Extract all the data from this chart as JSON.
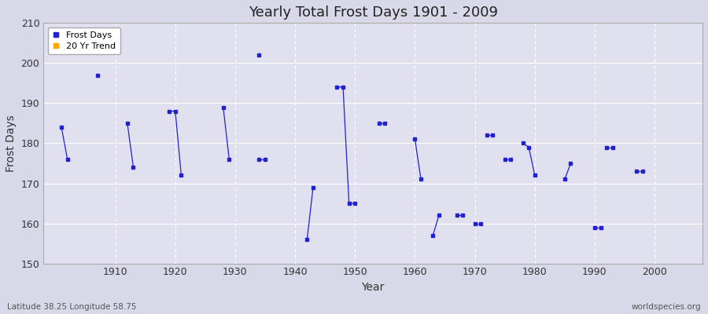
{
  "title": "Yearly Total Frost Days 1901 - 2009",
  "xlabel": "Year",
  "ylabel": "Frost Days",
  "xlim": [
    1898,
    2008
  ],
  "ylim": [
    150,
    210
  ],
  "yticks": [
    150,
    160,
    170,
    180,
    190,
    200,
    210
  ],
  "xticks": [
    1910,
    1920,
    1930,
    1940,
    1950,
    1960,
    1970,
    1980,
    1990,
    2000
  ],
  "bg_color": "#d8d8e8",
  "plot_bg_color": "#e0e0ee",
  "grid_color": "#ffffff",
  "line_color": "#2222cc",
  "marker_color": "#2222cc",
  "trend_color": "#ffa500",
  "lat_lon_text": "Latitude 38.25 Longitude 58.75",
  "watermark": "worldspecies.org",
  "segments": [
    {
      "years": [
        1901,
        1902
      ],
      "values": [
        184,
        176
      ]
    },
    {
      "years": [
        1907
      ],
      "values": [
        197
      ]
    },
    {
      "years": [
        1912,
        1913
      ],
      "values": [
        185,
        174
      ]
    },
    {
      "years": [
        1919,
        1920,
        1921
      ],
      "values": [
        188,
        188,
        172
      ]
    },
    {
      "years": [
        1928,
        1929
      ],
      "values": [
        189,
        176
      ]
    },
    {
      "years": [
        1934,
        1935
      ],
      "values": [
        176,
        176
      ]
    },
    {
      "years": [
        1934
      ],
      "values": [
        202
      ]
    },
    {
      "years": [
        1942,
        1943
      ],
      "values": [
        156,
        169
      ]
    },
    {
      "years": [
        1947,
        1948,
        1949,
        1950
      ],
      "values": [
        194,
        194,
        165,
        165
      ]
    },
    {
      "years": [
        1954,
        1955
      ],
      "values": [
        185,
        185
      ]
    },
    {
      "years": [
        1960,
        1961
      ],
      "values": [
        181,
        171
      ]
    },
    {
      "years": [
        1963,
        1964
      ],
      "values": [
        157,
        162
      ]
    },
    {
      "years": [
        1967,
        1968
      ],
      "values": [
        162,
        162
      ]
    },
    {
      "years": [
        1970,
        1971
      ],
      "values": [
        160,
        160
      ]
    },
    {
      "years": [
        1972,
        1973
      ],
      "values": [
        182,
        182
      ]
    },
    {
      "years": [
        1975,
        1976
      ],
      "values": [
        176,
        176
      ]
    },
    {
      "years": [
        1978,
        1979,
        1980
      ],
      "values": [
        180,
        179,
        172
      ]
    },
    {
      "years": [
        1985,
        1986
      ],
      "values": [
        171,
        175
      ]
    },
    {
      "years": [
        1990,
        1991
      ],
      "values": [
        159,
        159
      ]
    },
    {
      "years": [
        1992,
        1993
      ],
      "values": [
        179,
        179
      ]
    },
    {
      "years": [
        1997,
        1998
      ],
      "values": [
        173,
        173
      ]
    }
  ]
}
